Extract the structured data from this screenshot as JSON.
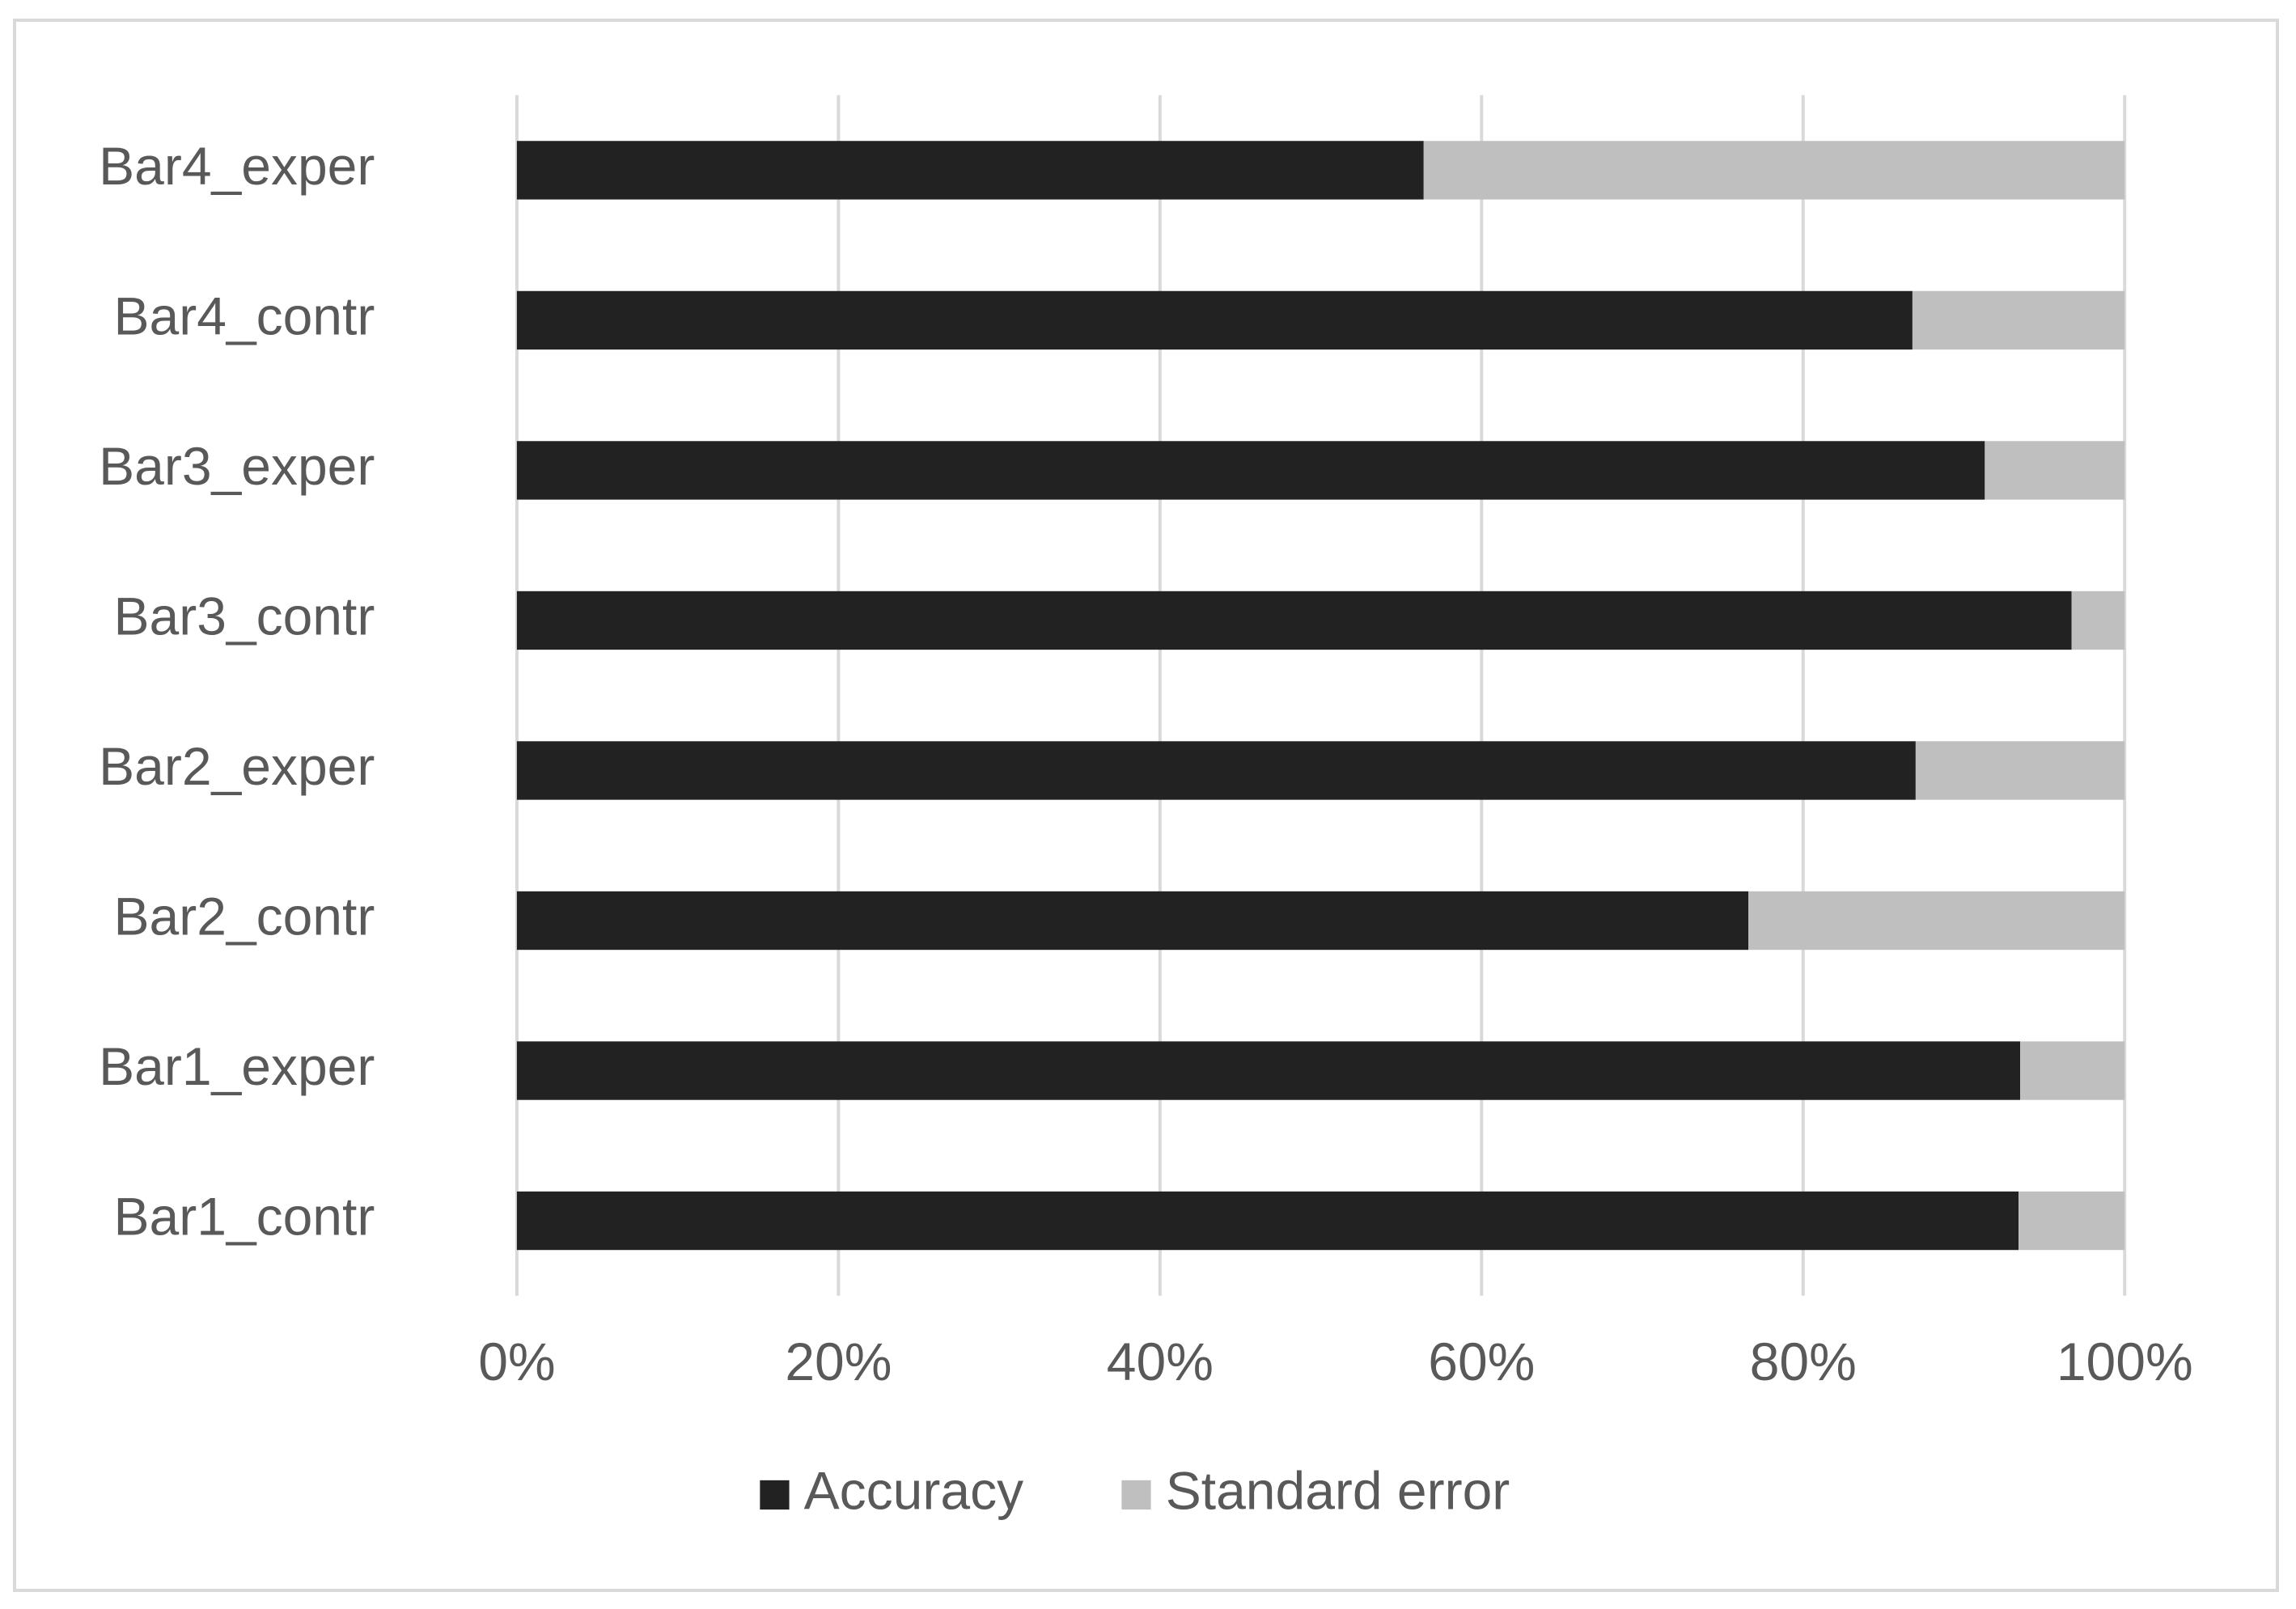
{
  "chart_data": {
    "type": "stacked_barh",
    "categories": [
      "Bar1_contr",
      "Bar1_exper",
      "Bar2_contr",
      "Bar2_exper",
      "Bar3_contr",
      "Bar3_exper",
      "Bar4_contr",
      "Bar4_exper"
    ],
    "series": [
      {
        "name": "Accuracy",
        "color": "#222222",
        "values": [
          93.4,
          93.5,
          76.6,
          87.0,
          96.7,
          91.3,
          86.8,
          56.4
        ]
      },
      {
        "name": "Standard error",
        "color": "#bfbfbf",
        "values": [
          6.6,
          6.5,
          23.4,
          13.0,
          3.3,
          8.7,
          13.2,
          43.6
        ]
      }
    ],
    "xlim": [
      0,
      100
    ],
    "xticks": [
      {
        "value": 0,
        "label": "0%"
      },
      {
        "value": 20,
        "label": "20%"
      },
      {
        "value": 40,
        "label": "40%"
      },
      {
        "value": 60,
        "label": "60%"
      },
      {
        "value": 80,
        "label": "80%"
      },
      {
        "value": 100,
        "label": "100%"
      }
    ],
    "grid": true,
    "legend": "bottom"
  }
}
